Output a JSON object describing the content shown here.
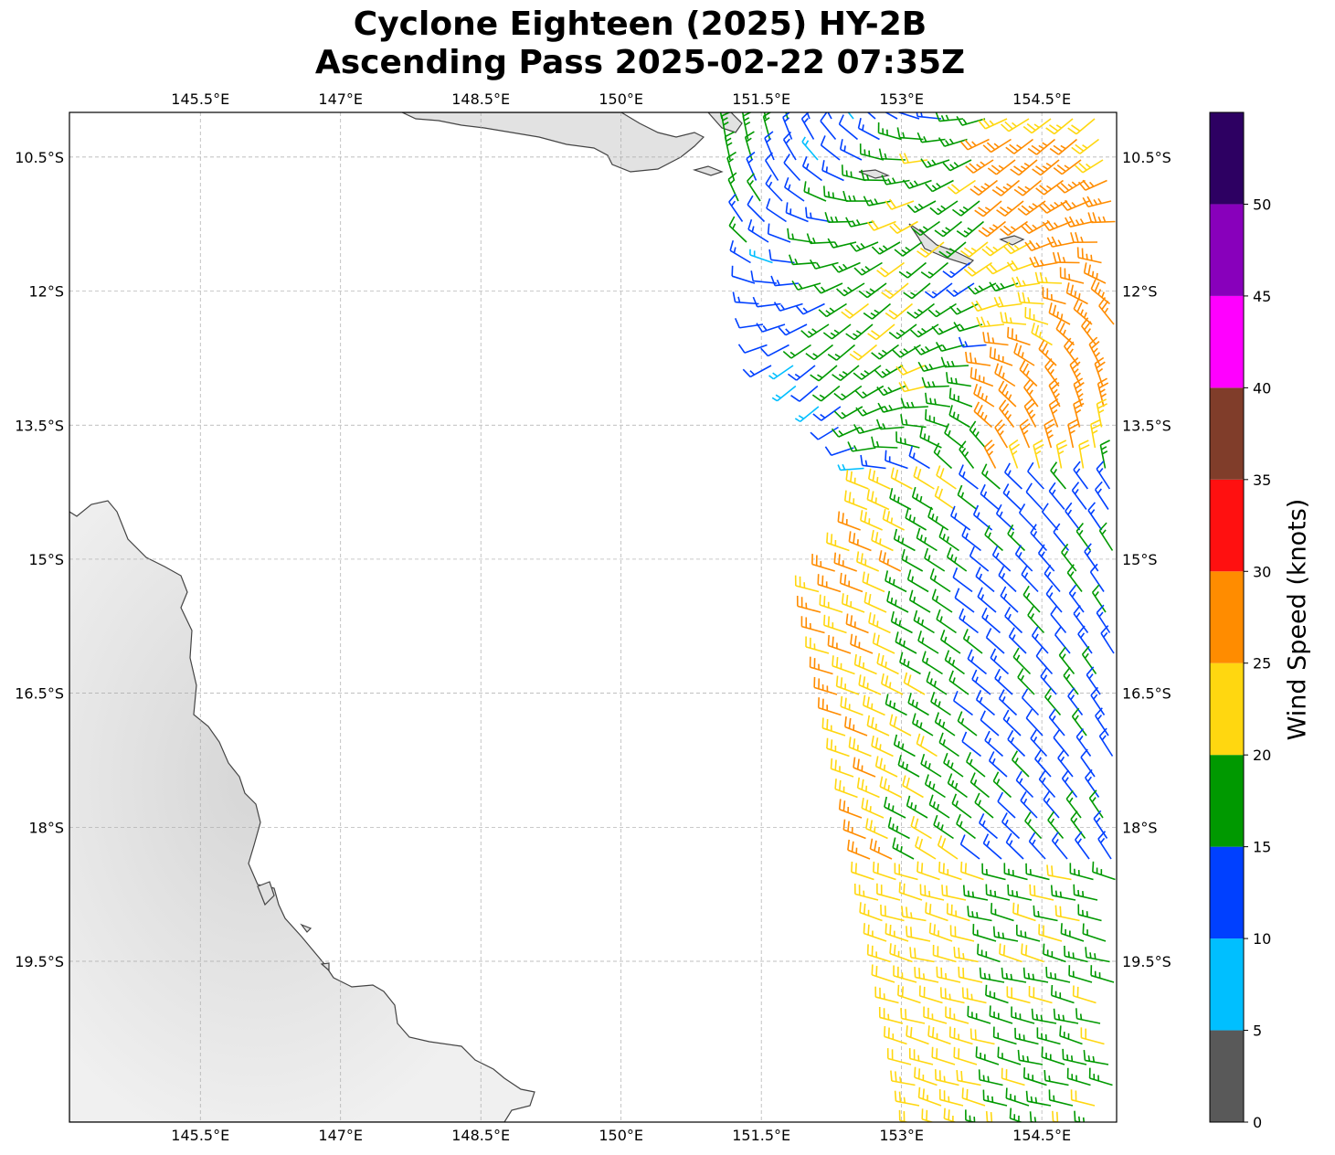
{
  "title": {
    "line1": "Cyclone Eighteen (2025) HY-2B",
    "line2": "Ascending Pass 2025-02-22 07:35Z"
  },
  "map": {
    "lon_ticks": [
      "145.5°E",
      "147°E",
      "148.5°E",
      "150°E",
      "151.5°E",
      "153°E",
      "154.5°E"
    ],
    "lon_values": [
      145.5,
      147.0,
      148.5,
      150.0,
      151.5,
      153.0,
      154.5
    ],
    "lat_ticks": [
      "10.5°S",
      "12°S",
      "13.5°S",
      "15°S",
      "16.5°S",
      "18°S",
      "19.5°S"
    ],
    "lat_values": [
      -10.5,
      -12.0,
      -13.5,
      -15.0,
      -16.5,
      -18.0,
      -19.5
    ],
    "lon_range": [
      144.1,
      155.3
    ],
    "lat_range": [
      -21.3,
      -10.0
    ],
    "gridlines": true,
    "land_color": "#e6e6e6",
    "coastline_color": "#444444"
  },
  "colorbar": {
    "label": "Wind Speed (knots)",
    "tick_labels": [
      "0",
      "5",
      "10",
      "15",
      "20",
      "25",
      "30",
      "35",
      "40",
      "45",
      "50"
    ],
    "ticks": [
      0,
      5,
      10,
      15,
      20,
      25,
      30,
      35,
      40,
      45,
      50
    ],
    "range": [
      0,
      55
    ],
    "colors": [
      "#595959",
      "#00bfff",
      "#0040ff",
      "#009900",
      "#ffd710",
      "#ff8c00",
      "#ff1010",
      "#803d2a",
      "#ff00ff",
      "#8800bb",
      "#2d0062"
    ]
  }
}
